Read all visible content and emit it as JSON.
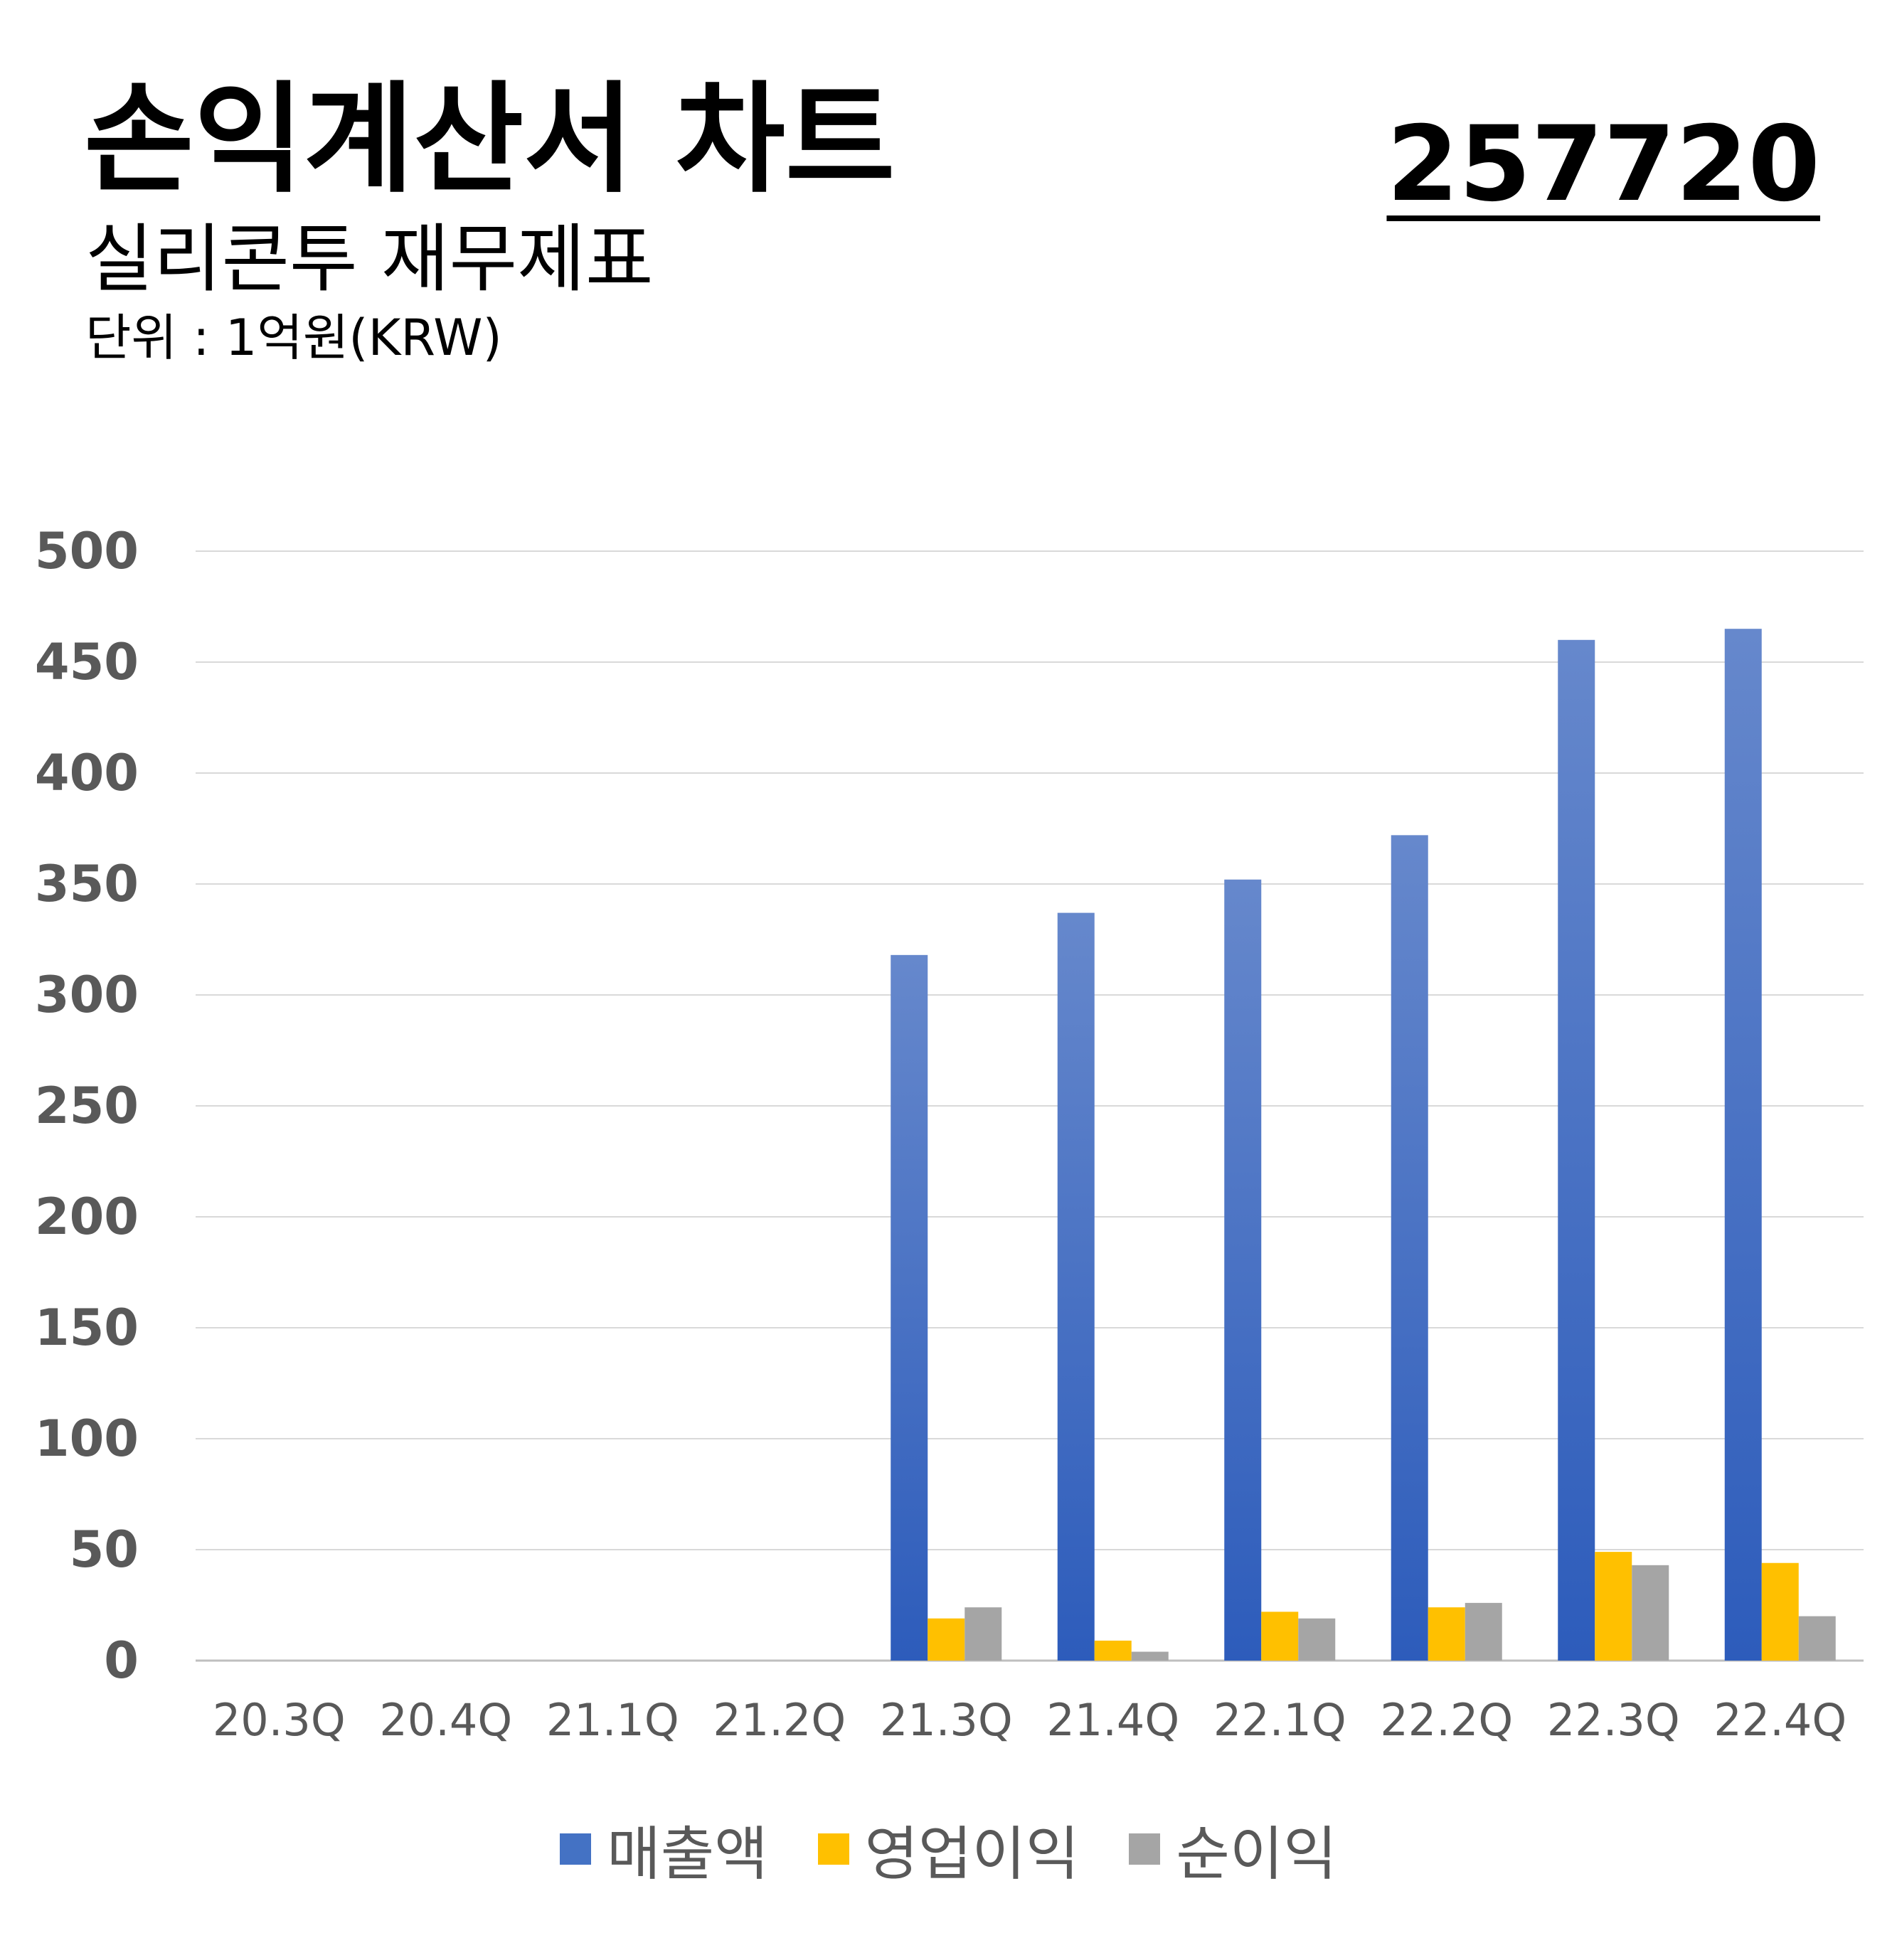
{
  "header": {
    "title": "손익계산서 차트",
    "code": "257720",
    "subtitle": "실리콘투 재무제표",
    "unit": "단위 : 1억원(KRW)"
  },
  "legend": [
    {
      "label": "매출액",
      "color": "#4472C4"
    },
    {
      "label": "영업이익",
      "color": "#FFC000"
    },
    {
      "label": "순이익",
      "color": "#A5A5A5"
    }
  ],
  "chart_data": {
    "type": "bar",
    "categories": [
      "20.3Q",
      "20.4Q",
      "21.1Q",
      "21.2Q",
      "21.3Q",
      "21.4Q",
      "22.1Q",
      "22.2Q",
      "22.3Q",
      "22.4Q"
    ],
    "series": [
      {
        "name": "매출액",
        "color": "#4472C4",
        "values": [
          null,
          null,
          null,
          null,
          318,
          337,
          352,
          372,
          460,
          465
        ]
      },
      {
        "name": "영업이익",
        "color": "#FFC000",
        "values": [
          null,
          null,
          null,
          null,
          19,
          9,
          22,
          24,
          49,
          44
        ]
      },
      {
        "name": "순이익",
        "color": "#A5A5A5",
        "values": [
          null,
          null,
          null,
          null,
          24,
          4,
          19,
          26,
          43,
          20
        ]
      }
    ],
    "ylim": [
      0,
      500
    ],
    "yticks": [
      "0",
      "50",
      "100",
      "150",
      "200",
      "250",
      "300",
      "350",
      "400",
      "450",
      "500"
    ],
    "grid": true,
    "legend_position": "bottom"
  }
}
